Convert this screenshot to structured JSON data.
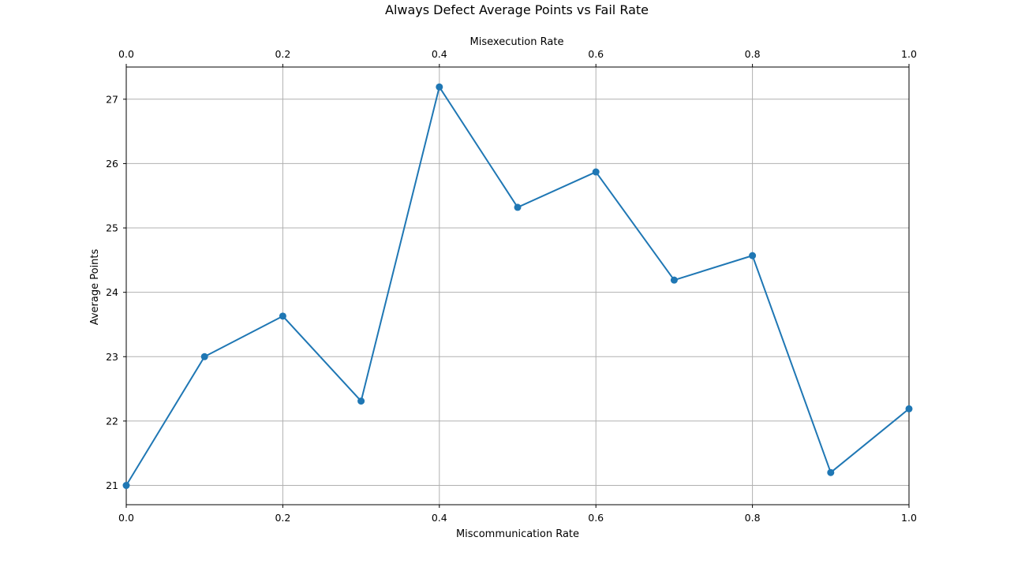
{
  "chart_data": {
    "type": "line",
    "title": "Always Defect Average Points vs Fail Rate",
    "xlabel": "Miscommunication Rate",
    "x2label": "Misexecution Rate",
    "ylabel": "Average Points",
    "xlim": [
      0.0,
      1.0
    ],
    "ylim": [
      20.7,
      27.5
    ],
    "grid": true,
    "x_ticks": [
      "0.0",
      "0.2",
      "0.4",
      "0.6",
      "0.8",
      "1.0"
    ],
    "x2_ticks": [
      "0.0",
      "0.2",
      "0.4",
      "0.6",
      "0.8",
      "1.0"
    ],
    "y_ticks": [
      "21",
      "22",
      "23",
      "24",
      "25",
      "26",
      "27"
    ],
    "series": [
      {
        "color": "#1f77b4",
        "marker": "circle",
        "x": [
          0.0,
          0.1,
          0.2,
          0.3,
          0.4,
          0.5,
          0.6,
          0.7,
          0.8,
          0.9,
          1.0
        ],
        "y": [
          21.0,
          23.0,
          23.63,
          22.31,
          27.19,
          25.32,
          25.87,
          24.19,
          24.57,
          21.2,
          22.19
        ]
      }
    ]
  }
}
